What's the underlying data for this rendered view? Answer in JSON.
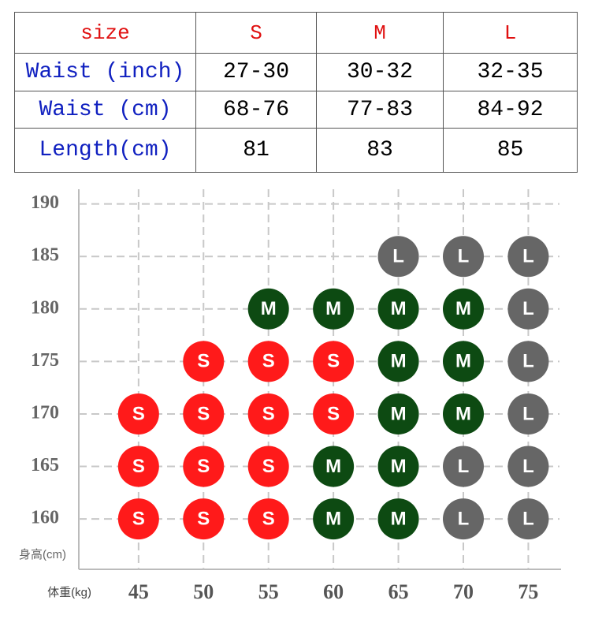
{
  "table": {
    "header": [
      "size",
      "S",
      "M",
      "L"
    ],
    "rows": [
      [
        "Waist (inch)",
        "27-30",
        "30-32",
        "32-35"
      ],
      [
        "Waist (cm)",
        "68-76",
        "77-83",
        "84-92"
      ],
      [
        "Length(cm)",
        "81",
        "83",
        "85"
      ]
    ]
  },
  "chart_data": {
    "type": "scatter",
    "x_label": "体重(kg)",
    "y_label": "身高(cm)",
    "xlim": [
      40.4,
      77.4
    ],
    "ylim": [
      155.2,
      191.4
    ],
    "xticks": [
      45,
      50,
      55,
      60,
      65,
      70,
      75
    ],
    "yticks": [
      160,
      165,
      170,
      175,
      180,
      185,
      190
    ],
    "grid": true,
    "series": [
      {
        "name": "S",
        "color": "#ff1a1a",
        "x": [
          50,
          55,
          60,
          45,
          50,
          55,
          60,
          45,
          50,
          55,
          45,
          50,
          55
        ],
        "y": [
          175,
          175,
          175,
          170,
          170,
          170,
          170,
          165,
          165,
          165,
          160,
          160,
          160
        ]
      },
      {
        "name": "M",
        "color": "#0d4a12",
        "x": [
          55,
          60,
          65,
          70,
          65,
          70,
          65,
          70,
          60,
          65,
          60,
          65
        ],
        "y": [
          180,
          180,
          180,
          180,
          175,
          175,
          170,
          170,
          165,
          165,
          160,
          160
        ]
      },
      {
        "name": "L",
        "color": "#666666",
        "x": [
          65,
          70,
          75,
          75,
          75,
          75,
          70,
          75,
          70,
          75
        ],
        "y": [
          185,
          185,
          185,
          180,
          175,
          170,
          165,
          165,
          160,
          160
        ]
      }
    ]
  }
}
